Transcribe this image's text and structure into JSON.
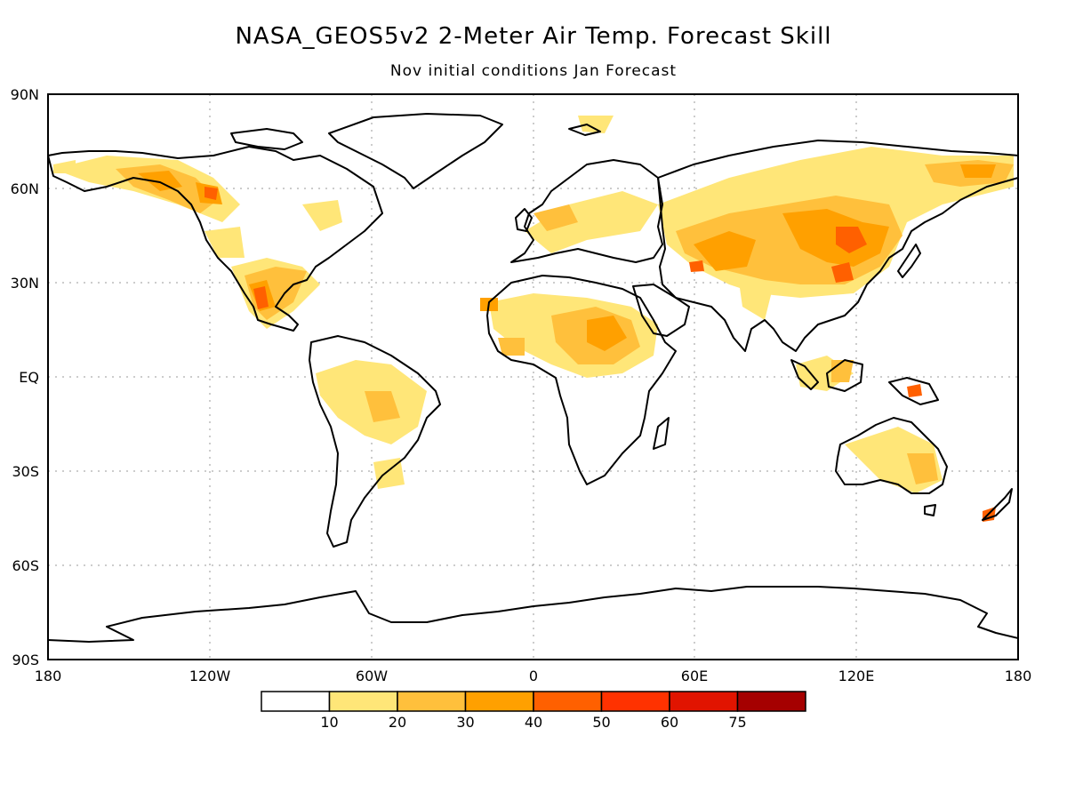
{
  "title": "NASA_GEOS5v2 2-Meter Air Temp. Forecast Skill",
  "subtitle": "Nov initial conditions  Jan Forecast",
  "map": {
    "lat_labels": [
      "90N",
      "60N",
      "30N",
      "EQ",
      "30S",
      "60S",
      "90S"
    ],
    "lon_labels": [
      "180",
      "120W",
      "60W",
      "0",
      "60E",
      "120E",
      "180"
    ],
    "grid": true,
    "projection": "cylindrical equidistant"
  },
  "colorbar": {
    "labels": [
      "10",
      "20",
      "30",
      "40",
      "50",
      "60",
      "75"
    ],
    "colors": [
      "#ffffff",
      "#ffe678",
      "#ffc03c",
      "#ffa000",
      "#ff6000",
      "#ff3200",
      "#e11400",
      "#a50000"
    ]
  }
}
